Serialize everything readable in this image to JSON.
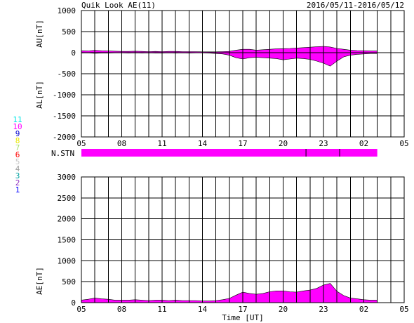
{
  "header": {
    "title": "Quik Look AE(11)",
    "date_range": "2016/05/11-2016/05/12"
  },
  "colors": {
    "fill": "#ff00ff",
    "grid": "#000000",
    "background": "#ffffff"
  },
  "station_legend": [
    {
      "label": "11",
      "color": "#00e5e5"
    },
    {
      "label": "10",
      "color": "#ff00ff"
    },
    {
      "label": "9",
      "color": "#0000d0"
    },
    {
      "label": "8",
      "color": "#e8e800"
    },
    {
      "label": "7",
      "color": "#a8e070"
    },
    {
      "label": "6",
      "color": "#ff0000"
    },
    {
      "label": "5",
      "color": "#c8c8c8"
    },
    {
      "label": "4",
      "color": "#a0a0a0"
    },
    {
      "label": "3",
      "color": "#00a0a0"
    },
    {
      "label": "2",
      "color": "#9030c0"
    },
    {
      "label": "1",
      "color": "#0000ff"
    }
  ],
  "nstn": {
    "label": "N.STN",
    "color": "#ff00ff",
    "start_hour": 5,
    "end_hour": 27,
    "tick_hours": [
      21.7,
      24.2
    ]
  },
  "chart_data": [
    {
      "type": "area",
      "name": "AU/AL panel",
      "ylabel_upper": "AU[nT]",
      "ylabel_lower": "AL[nT]",
      "xlabel": "",
      "xlim": [
        5,
        29
      ],
      "ylim": [
        -2000,
        1000
      ],
      "yticks": [
        1000,
        500,
        0,
        -500,
        -1000,
        -1500,
        -2000
      ],
      "xtick_labels": [
        "05",
        "08",
        "11",
        "14",
        "17",
        "20",
        "23",
        "02",
        "05"
      ],
      "grid": true,
      "series": [
        {
          "name": "AU",
          "x": [
            5.0,
            5.5,
            6.0,
            6.5,
            7.0,
            7.5,
            8.0,
            8.5,
            9.0,
            9.5,
            10.0,
            10.5,
            11.0,
            11.5,
            12.0,
            12.5,
            13.0,
            13.5,
            14.0,
            14.5,
            15.0,
            15.5,
            16.0,
            16.5,
            17.0,
            17.5,
            18.0,
            18.5,
            19.0,
            19.5,
            20.0,
            20.5,
            21.0,
            21.5,
            22.0,
            22.5,
            23.0,
            23.5,
            24.0,
            24.5,
            25.0,
            25.5,
            26.0,
            26.5,
            27.0
          ],
          "values": [
            45,
            40,
            55,
            45,
            40,
            35,
            30,
            30,
            35,
            30,
            25,
            30,
            25,
            30,
            30,
            25,
            25,
            25,
            20,
            20,
            20,
            25,
            30,
            60,
            80,
            80,
            60,
            70,
            80,
            90,
            95,
            100,
            110,
            120,
            130,
            140,
            150,
            135,
            100,
            80,
            60,
            50,
            45,
            40,
            40
          ]
        },
        {
          "name": "AL",
          "x": [
            5.0,
            5.5,
            6.0,
            6.5,
            7.0,
            7.5,
            8.0,
            8.5,
            9.0,
            9.5,
            10.0,
            10.5,
            11.0,
            11.5,
            12.0,
            12.5,
            13.0,
            13.5,
            14.0,
            14.5,
            15.0,
            15.5,
            16.0,
            16.5,
            17.0,
            17.5,
            18.0,
            18.5,
            19.0,
            19.5,
            20.0,
            20.5,
            21.0,
            21.5,
            22.0,
            22.5,
            23.0,
            23.5,
            24.0,
            24.5,
            25.0,
            25.5,
            26.0,
            26.5,
            27.0
          ],
          "values": [
            -10,
            -5,
            -15,
            -10,
            -10,
            -5,
            -5,
            -10,
            -5,
            -10,
            -5,
            -10,
            -10,
            -5,
            -10,
            -5,
            -10,
            -5,
            -5,
            -10,
            -20,
            -30,
            -60,
            -120,
            -150,
            -120,
            -110,
            -120,
            -130,
            -140,
            -170,
            -150,
            -130,
            -140,
            -160,
            -200,
            -250,
            -320,
            -200,
            -100,
            -60,
            -40,
            -30,
            -20,
            -20
          ]
        }
      ]
    },
    {
      "type": "area",
      "name": "AE panel",
      "ylabel": "AE[nT]",
      "xlabel": "Time [UT]",
      "xlim": [
        5,
        29
      ],
      "ylim": [
        0,
        3000
      ],
      "yticks": [
        3000,
        2500,
        2000,
        1500,
        1000,
        500,
        0
      ],
      "xtick_labels": [
        "05",
        "08",
        "11",
        "14",
        "17",
        "20",
        "23",
        "02",
        "05"
      ],
      "grid": true,
      "series": [
        {
          "name": "AE",
          "x": [
            5.0,
            5.5,
            6.0,
            6.5,
            7.0,
            7.5,
            8.0,
            8.5,
            9.0,
            9.5,
            10.0,
            10.5,
            11.0,
            11.5,
            12.0,
            12.5,
            13.0,
            13.5,
            14.0,
            14.5,
            15.0,
            15.5,
            16.0,
            16.5,
            17.0,
            17.5,
            18.0,
            18.5,
            19.0,
            19.5,
            20.0,
            20.5,
            21.0,
            21.5,
            22.0,
            22.5,
            23.0,
            23.5,
            24.0,
            24.5,
            25.0,
            25.5,
            26.0,
            26.5,
            27.0
          ],
          "values": [
            60,
            80,
            110,
            90,
            80,
            60,
            60,
            60,
            70,
            60,
            50,
            60,
            60,
            50,
            60,
            50,
            50,
            50,
            40,
            40,
            50,
            70,
            100,
            180,
            250,
            220,
            200,
            220,
            260,
            280,
            280,
            260,
            250,
            280,
            300,
            340,
            420,
            460,
            270,
            170,
            110,
            90,
            70,
            60,
            60
          ]
        }
      ]
    }
  ]
}
